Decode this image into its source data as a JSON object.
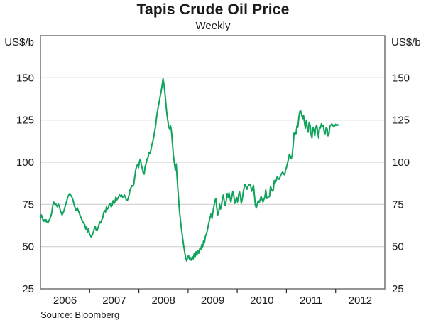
{
  "title": "Tapis Crude Oil Price",
  "subtitle": "Weekly",
  "footer": {
    "source": "Source: Bloomberg"
  },
  "axes": {
    "left_unit": "US$/b",
    "right_unit": "US$/b"
  },
  "colors": {
    "line": "#10a35c",
    "grid": "#c9c9c9",
    "frame": "#7b7b7b",
    "tick": "#2b2b2b",
    "text": "#1a1a1a",
    "background": "#ffffff"
  },
  "chart_data": {
    "type": "line",
    "title": "Tapis Crude Oil Price",
    "subtitle": "Weekly",
    "ylabel_left": "US$/b",
    "ylabel_right": "US$/b",
    "source": "Source: Bloomberg",
    "frequency": "weekly",
    "legend": "none",
    "grid": "horizontal-only",
    "ylim": [
      25,
      175
    ],
    "yticks": [
      150,
      125,
      100,
      75,
      50,
      25
    ],
    "gridline_values": [
      150,
      125,
      100,
      75,
      50
    ],
    "x_year_labels": [
      "2006",
      "2007",
      "2008",
      "2009",
      "2010",
      "2011",
      "2012"
    ],
    "x_axis_years_span": 7,
    "x_start": "2006-01",
    "x_end_of_data": "2012-01",
    "series": [
      {
        "name": "Tapis crude oil price (US$/b, weekly)",
        "values": [
          66.5,
          68.8,
          67.2,
          65.0,
          65.9,
          64.6,
          65.9,
          64.6,
          64.0,
          65.5,
          66.5,
          68.0,
          70.1,
          74.3,
          76.4,
          75.1,
          75.6,
          74.5,
          73.5,
          75.1,
          74.0,
          71.5,
          70.1,
          68.8,
          70.0,
          71.4,
          73.5,
          75.5,
          77.2,
          79.5,
          80.6,
          81.5,
          80.5,
          79.7,
          78.5,
          76.4,
          74.3,
          72.5,
          71.4,
          73.0,
          71.5,
          70.1,
          68.5,
          67.2,
          65.9,
          64.6,
          63.8,
          62.9,
          60.4,
          61.7,
          58.7,
          60.4,
          57.5,
          56.6,
          55.5,
          57.0,
          58.5,
          60.5,
          62.0,
          60.0,
          59.6,
          61.0,
          63.0,
          64.6,
          64.0,
          65.9,
          67.0,
          70.1,
          71.4,
          70.5,
          73.5,
          72.2,
          73.0,
          75.1,
          75.6,
          73.5,
          74.5,
          77.2,
          75.6,
          76.5,
          79.3,
          77.7,
          78.5,
          79.7,
          80.6,
          79.7,
          80.6,
          79.3,
          79.7,
          80.6,
          79.3,
          77.7,
          77.2,
          78.5,
          80.6,
          83.6,
          84.9,
          86.2,
          85.7,
          87.0,
          91.2,
          95.4,
          97.5,
          98.8,
          96.7,
          100.5,
          101.8,
          98.4,
          96.2,
          93.7,
          92.9,
          97.5,
          99.0,
          101.8,
          102.6,
          106.0,
          105.1,
          107.0,
          110.0,
          112.0,
          114.5,
          118.0,
          121.0,
          126.0,
          130.0,
          133.0,
          136.0,
          139.0,
          142.0,
          145.5,
          149.5,
          146.0,
          141.0,
          135.0,
          129.0,
          125.0,
          121.0,
          119.5,
          121.5,
          118.0,
          111.0,
          104.0,
          99.6,
          95.4,
          99.0,
          90.0,
          82.0,
          74.0,
          68.0,
          63.0,
          58.5,
          54.0,
          50.0,
          46.5,
          43.5,
          41.5,
          43.5,
          44.8,
          42.7,
          43.5,
          41.9,
          44.0,
          42.7,
          45.7,
          44.0,
          46.9,
          44.8,
          47.8,
          46.1,
          49.0,
          48.2,
          51.1,
          49.9,
          53.3,
          52.5,
          56.2,
          57.5,
          59.6,
          62.5,
          65.2,
          67.5,
          69.5,
          66.7,
          71.0,
          74.0,
          77.2,
          78.5,
          73.0,
          68.8,
          70.0,
          75.1,
          72.2,
          74.5,
          78.5,
          80.6,
          76.5,
          74.3,
          77.0,
          81.5,
          79.3,
          81.9,
          79.0,
          76.4,
          79.5,
          82.8,
          80.5,
          75.6,
          77.5,
          79.0,
          76.4,
          80.0,
          82.8,
          80.0,
          75.6,
          78.0,
          82.0,
          84.9,
          87.0,
          85.5,
          84.0,
          85.7,
          86.5,
          87.0,
          86.0,
          82.8,
          84.5,
          86.2,
          80.0,
          74.3,
          72.9,
          75.5,
          77.2,
          76.0,
          77.7,
          79.7,
          78.0,
          76.4,
          78.0,
          79.3,
          83.6,
          78.5,
          79.0,
          79.5,
          79.7,
          85.7,
          84.0,
          83.0,
          83.6,
          89.1,
          87.8,
          89.0,
          91.2,
          90.5,
          89.9,
          91.0,
          92.5,
          93.5,
          94.2,
          93.0,
          92.5,
          95.4,
          97.0,
          99.5,
          101.7,
          104.7,
          103.8,
          102.0,
          104.0,
          110.0,
          117.3,
          117.8,
          116.5,
          121.5,
          120.7,
          126.2,
          130.0,
          130.4,
          128.3,
          125.8,
          127.9,
          123.7,
          119.9,
          124.9,
          120.7,
          117.8,
          123.7,
          122.0,
          116.5,
          114.4,
          120.7,
          119.4,
          115.7,
          120.7,
          122.0,
          118.6,
          114.4,
          120.7,
          120.3,
          122.8,
          121.5,
          122.0,
          117.8,
          116.5,
          120.3,
          119.9,
          115.7,
          116.5,
          121.5,
          122.0,
          122.8,
          122.0,
          121.0,
          121.5,
          122.5,
          121.8,
          122.3,
          122.0
        ]
      }
    ]
  }
}
